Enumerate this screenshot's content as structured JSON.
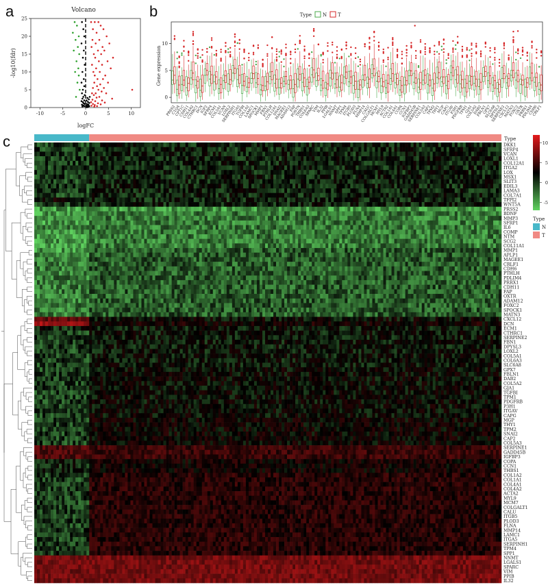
{
  "panel_labels": {
    "a": "a",
    "b": "b",
    "c": "c"
  },
  "colors": {
    "up": "#d62728",
    "down": "#2ca02c",
    "ns": "#000000",
    "group_N": "#48b8c9",
    "group_T": "#f08a84",
    "heat_high": "#e41a1c",
    "heat_mid": "#000000",
    "heat_low": "#5fd35f",
    "box_N": "#4aa84a",
    "box_T": "#d62728"
  },
  "chart_data": [
    {
      "type": "scatter",
      "title": "Volcano",
      "xlabel": "logFC",
      "ylabel": "-log10(fdr)",
      "xlim": [
        -12,
        12
      ],
      "ylim": [
        0,
        25
      ],
      "xticks": [
        "-10",
        "-5",
        "0",
        "5",
        "10"
      ],
      "yticks": [
        "0",
        "5",
        "10",
        "15",
        "20",
        "25"
      ],
      "threshold_logfc": 0,
      "points_up": [
        [
          1.2,
          24
        ],
        [
          2.0,
          24
        ],
        [
          2.8,
          24
        ],
        [
          3.3,
          23
        ],
        [
          1.6,
          22
        ],
        [
          3.9,
          22
        ],
        [
          2.4,
          21
        ],
        [
          4.6,
          20
        ],
        [
          1.5,
          19
        ],
        [
          3.0,
          19
        ],
        [
          2.2,
          18
        ],
        [
          5.2,
          18
        ],
        [
          1.3,
          17
        ],
        [
          3.7,
          17
        ],
        [
          2.7,
          16
        ],
        [
          4.1,
          16
        ],
        [
          1.8,
          15
        ],
        [
          3.4,
          15
        ],
        [
          6.0,
          14
        ],
        [
          2.1,
          14
        ],
        [
          2.9,
          13
        ],
        [
          4.8,
          13
        ],
        [
          1.4,
          12
        ],
        [
          3.6,
          12
        ],
        [
          2.3,
          11
        ],
        [
          5.5,
          11
        ],
        [
          1.7,
          10
        ],
        [
          3.1,
          10
        ],
        [
          4.3,
          9
        ],
        [
          2.0,
          9
        ],
        [
          2.6,
          8
        ],
        [
          3.8,
          8
        ],
        [
          1.9,
          7
        ],
        [
          4.9,
          7
        ],
        [
          3.2,
          6.5
        ],
        [
          2.5,
          6
        ],
        [
          1.6,
          5.5
        ],
        [
          4.0,
          5.5
        ],
        [
          2.8,
          5
        ],
        [
          10.2,
          5
        ],
        [
          3.5,
          4.5
        ],
        [
          1.4,
          4
        ],
        [
          2.2,
          4
        ],
        [
          4.5,
          4
        ],
        [
          1.8,
          3.5
        ],
        [
          3.0,
          3
        ],
        [
          2.4,
          2.8
        ],
        [
          5.8,
          2.5
        ],
        [
          1.5,
          2.2
        ],
        [
          3.6,
          2
        ],
        [
          2.1,
          1.8
        ],
        [
          1.2,
          1.5
        ],
        [
          4.2,
          1.4
        ],
        [
          2.7,
          1.2
        ],
        [
          1.6,
          1
        ],
        [
          3.3,
          0.9
        ],
        [
          2.0,
          0.7
        ],
        [
          1.3,
          0.5
        ],
        [
          2.5,
          0.4
        ],
        [
          1.9,
          0.3
        ]
      ],
      "points_down": [
        [
          -2.4,
          24
        ],
        [
          -1.9,
          23
        ],
        [
          -2.8,
          21
        ],
        [
          -1.5,
          20
        ],
        [
          -2.2,
          19
        ],
        [
          -1.7,
          17
        ],
        [
          -2.6,
          16
        ],
        [
          -1.4,
          15
        ],
        [
          -2.0,
          13
        ],
        [
          -1.6,
          11
        ],
        [
          -2.3,
          10
        ],
        [
          -1.5,
          9
        ],
        [
          -1.8,
          7
        ],
        [
          -1.3,
          5
        ],
        [
          -2.1,
          3
        ]
      ],
      "points_ns": [
        [
          -0.8,
          24
        ],
        [
          -0.5,
          22
        ],
        [
          -0.3,
          20
        ],
        [
          -0.9,
          18
        ],
        [
          -0.4,
          16
        ],
        [
          -0.6,
          14
        ],
        [
          -0.2,
          12
        ],
        [
          -0.7,
          10
        ],
        [
          -0.4,
          8
        ],
        [
          -0.9,
          7
        ],
        [
          -0.3,
          6
        ],
        [
          -0.6,
          5
        ],
        [
          -0.8,
          4
        ],
        [
          -0.2,
          3.5
        ],
        [
          -0.5,
          3
        ],
        [
          -0.7,
          2.5
        ],
        [
          -0.3,
          2
        ],
        [
          -0.9,
          1.8
        ],
        [
          -0.6,
          1.5
        ],
        [
          -0.4,
          1.2
        ],
        [
          -0.2,
          1
        ],
        [
          -0.8,
          0.8
        ],
        [
          -0.5,
          0.6
        ],
        [
          -0.3,
          0.4
        ],
        [
          -0.7,
          0.3
        ],
        [
          0.2,
          0.2
        ],
        [
          0.4,
          0.5
        ],
        [
          0.6,
          0.8
        ],
        [
          0.3,
          1
        ],
        [
          0.8,
          1.3
        ],
        [
          0.5,
          1.6
        ],
        [
          0.2,
          2
        ],
        [
          0.7,
          2.3
        ],
        [
          0.4,
          2.7
        ],
        [
          0.9,
          3
        ],
        [
          0.3,
          0.1
        ],
        [
          0.6,
          0.3
        ],
        [
          0.1,
          0.6
        ],
        [
          0.5,
          0.2
        ],
        [
          0.8,
          0.4
        ]
      ]
    },
    {
      "type": "box",
      "title": "",
      "xlabel": "",
      "ylabel": "Gene expression",
      "legend": {
        "title": "Type",
        "entries": [
          "N",
          "T"
        ],
        "position": "top"
      },
      "ylim": [
        -1,
        14
      ],
      "yticks": [
        "0",
        "5",
        "10"
      ],
      "series": [
        {
          "name": "N",
          "medians": [
            3.2,
            1.5,
            2.4,
            1.8,
            3.6,
            2.2,
            1.3,
            4.1,
            3.4,
            2.9,
            1.6,
            3.1,
            2.5,
            4.5,
            3.3,
            2.2,
            1.9,
            3.5,
            2.7,
            1.4,
            2.1,
            3.9,
            2.6,
            1.8,
            3.0,
            2.4,
            1.6,
            3.4,
            2.8,
            2.0,
            4.2,
            3.1,
            2.3,
            1.7,
            3.6,
            2.5,
            1.9,
            3.8,
            2.9,
            2.2,
            1.5,
            3.3,
            2.6,
            4.4,
            3.0,
            2.1,
            1.8,
            3.5,
            2.7,
            1.4,
            2.3,
            4.0,
            2.8,
            1.9,
            3.2,
            2.4,
            1.7,
            3.7,
            2.9,
            2.2,
            4.6,
            3.3,
            2.5,
            1.8,
            3.0,
            2.6,
            2.0,
            3.9,
            3.1,
            2.3,
            1.6,
            3.5,
            2.7,
            4.1,
            3.2,
            2.4,
            1.9,
            3.6,
            2.8,
            1.5
          ]
        },
        {
          "name": "T",
          "medians": [
            4.1,
            2.3,
            3.2,
            2.6,
            4.5,
            3.0,
            2.1,
            5.0,
            4.2,
            3.8,
            2.4,
            4.0,
            3.3,
            5.4,
            4.1,
            3.0,
            2.7,
            4.4,
            3.5,
            2.2,
            2.9,
            4.8,
            3.4,
            2.6,
            3.9,
            3.2,
            2.4,
            4.3,
            3.6,
            2.8,
            5.1,
            4.0,
            3.1,
            2.5,
            4.5,
            3.3,
            2.7,
            4.7,
            3.8,
            3.0,
            2.3,
            4.2,
            3.4,
            5.3,
            3.9,
            2.9,
            2.6,
            4.4,
            3.5,
            2.2,
            3.1,
            4.9,
            3.6,
            2.7,
            4.1,
            3.2,
            2.5,
            4.6,
            3.8,
            3.0,
            5.5,
            4.2,
            3.3,
            2.6,
            3.9,
            3.4,
            2.8,
            4.8,
            4.0,
            3.1,
            2.4,
            4.4,
            3.5,
            5.0,
            4.1,
            3.2,
            2.7,
            4.5,
            3.7,
            2.3
          ]
        }
      ],
      "categories": [
        "PRSS2",
        "C1QA",
        "CPT1C",
        "CDH11",
        "COL4A2",
        "CTHRC1",
        "DCN",
        "IGF2",
        "SFRP4",
        "ECM1",
        "COL5A1",
        "VCAN",
        "LOXL2",
        "SERPINH1",
        "ITGA5",
        "TGFBI",
        "COL1A2",
        "LAMC1",
        "SPOCK1",
        "MMP1",
        "FBN1",
        "PTHLH",
        "COL12A1",
        "SNAI2",
        "MAGEE1",
        "ADAM12",
        "FAP",
        "POSTN",
        "THBS1",
        "COL6A3",
        "SPARC",
        "VIM",
        "IL32",
        "PPIB",
        "LGALS1",
        "NNMT",
        "SPP1",
        "TPM4",
        "ITGB5",
        "PLOD3",
        "FLNA",
        "MMP14",
        "CALU",
        "COLGALT1",
        "MCM7",
        "MYL9",
        "ACTA2",
        "COL1A1",
        "COL4A1",
        "COPA",
        "CCN1",
        "IGFBP3",
        "GADD45B",
        "SERPINE1",
        "COL5A3",
        "CAP2",
        "TPM2",
        "THY1",
        "MGP",
        "CAPG",
        "ITGAV",
        "P3H1",
        "PDGFRB",
        "TPM1",
        "GJA1",
        "COL5A2",
        "DAB2",
        "FBLN1",
        "GPX7",
        "SLC6A8",
        "DPYSL3",
        "SERPINE2",
        "CXCL12",
        "MATN3",
        "FOXC2",
        "OXTR",
        "PRRX1",
        "PDLIM4",
        "CDH6",
        "CRLF1"
      ]
    },
    {
      "type": "heatmap",
      "title": "",
      "legend": {
        "title": "Type",
        "entries": [
          "N",
          "T"
        ]
      },
      "colorbar_ticks": [
        "10",
        "5",
        "0",
        "-5"
      ],
      "color_range": [
        -7,
        12
      ],
      "column_annotation_label": "Type",
      "n_samples": {
        "N": 50,
        "T": 374
      },
      "rows": [
        "DKK1",
        "SFRP4",
        "VCAN",
        "LOXL1",
        "COL12A1",
        "ITGA2",
        "LOX",
        "MSX1",
        "SLIT3",
        "EDIL3",
        "LAMA3",
        "COL7A1",
        "TFPI2",
        "WNT5A",
        "PRSS2",
        "BDNF",
        "MMP3",
        "SFRP1",
        "IL6",
        "COMP",
        "NTM",
        "SCG2",
        "COL11A1",
        "MMP1",
        "APLP1",
        "MAGEE1",
        "CRLF1",
        "CDH6",
        "PTHLH",
        "PDLIM4",
        "PRRX1",
        "CDH11",
        "FAP",
        "OXTR",
        "ADAM12",
        "FOXC2",
        "SPOCK1",
        "MATN3",
        "CXCL12",
        "DCN",
        "ECM1",
        "CTHRC1",
        "SERPINE2",
        "FBN1",
        "DPYSL3",
        "LOXL2",
        "COL5A1",
        "COL6A3",
        "SLC6A8",
        "GPX7",
        "FBLN1",
        "DAB2",
        "COL5A2",
        "GJA1",
        "TGFBI",
        "TPM1",
        "PDGFRB",
        "P3H1",
        "ITGAV",
        "CAPG",
        "MGP",
        "THY1",
        "TPM2",
        "SNAI2",
        "CAP2",
        "COL5A3",
        "SERPINE1",
        "GADD45B",
        "IGFBP3",
        "COPA",
        "CCN1",
        "THBS1",
        "COL1A2",
        "COL1A1",
        "COL4A1",
        "COL4A2",
        "ACTA2",
        "MYL9",
        "MCM7",
        "COLGALT1",
        "CALU",
        "ITGB5",
        "PLOD3",
        "FLNA",
        "MMP14",
        "LAMC1",
        "ITGA5",
        "SERPINH1",
        "TPM4",
        "SPP1",
        "NNMT",
        "LGALS1",
        "SPARC",
        "VIM",
        "PPIB",
        "IL32"
      ],
      "row_mean_N": [
        -2,
        -2,
        -2,
        -2,
        -2,
        -2,
        -2,
        -2,
        -2,
        -2,
        -2,
        -2,
        0.5,
        -2,
        -5,
        -5,
        -5,
        -5,
        -4,
        -5,
        -5,
        -5,
        -5,
        -5,
        -4,
        -4,
        -4,
        -4,
        -4,
        -4,
        -4,
        -4,
        -4,
        -4,
        -4,
        -4,
        -4,
        -4,
        5,
        8,
        -1,
        -2,
        -2,
        -2,
        -2,
        -2,
        -2,
        -2,
        -2,
        -2,
        -2,
        -2,
        -2,
        -2,
        -2,
        -2,
        -2,
        -2,
        -2,
        -2,
        -2,
        -2,
        -2,
        -2,
        -2,
        -2,
        4,
        4,
        4,
        -1,
        -1,
        -1,
        -2,
        -2,
        -2,
        -2,
        -2,
        -2,
        -2,
        -2,
        -2,
        -2,
        -2,
        -2,
        -2,
        -2,
        -2,
        -2,
        -2,
        -2,
        6,
        6,
        6,
        6,
        6,
        6
      ],
      "row_mean_T": [
        -1,
        -1,
        -1,
        -1,
        -1,
        -1,
        -1,
        -1,
        -1,
        -1,
        -1,
        -1,
        -1,
        -1,
        -5,
        -4,
        -4,
        -4,
        -4,
        -4,
        -4,
        -4,
        -4,
        -3,
        -3,
        -3,
        -3,
        -3,
        -3,
        -3,
        -3,
        -3,
        -3,
        -3,
        -3,
        -3,
        -3,
        -3,
        0,
        1,
        -0.5,
        -0.5,
        -0.5,
        -0.5,
        -0.5,
        -0.5,
        -0.5,
        -0.5,
        -0.5,
        0,
        0,
        0,
        0,
        0,
        0,
        0,
        0,
        0,
        0,
        0,
        0.5,
        0.5,
        0.5,
        0.5,
        0.5,
        0.5,
        3,
        3,
        3,
        1,
        1,
        1,
        2,
        2,
        2,
        2,
        2,
        2,
        2,
        2,
        2,
        2,
        2,
        2,
        2,
        2,
        2,
        2,
        2,
        2,
        6,
        6,
        6,
        6,
        6,
        6
      ]
    }
  ]
}
